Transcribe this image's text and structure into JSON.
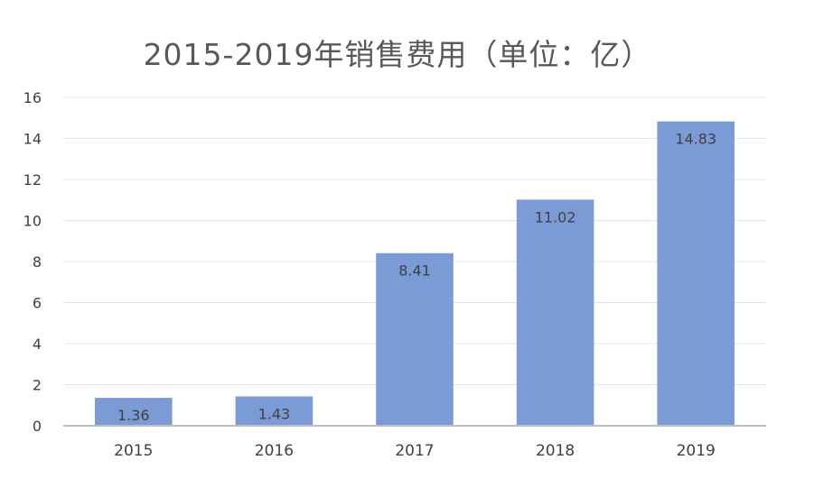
{
  "chart_data": {
    "type": "bar",
    "title": "2015-2019年销售费用（单位：亿）",
    "categories": [
      "2015",
      "2016",
      "2017",
      "2018",
      "2019"
    ],
    "series": [
      {
        "values": [
          1.36,
          1.43,
          8.41,
          11.02,
          14.83
        ],
        "data_labels": [
          "1.36",
          "1.43",
          "8.41",
          "11.02",
          "14.83"
        ]
      }
    ],
    "ylim": [
      0,
      16
    ],
    "yticks": [
      0,
      2,
      4,
      6,
      8,
      10,
      12,
      14,
      16
    ],
    "ytick_labels": [
      "0",
      "2",
      "4",
      "6",
      "8",
      "10",
      "12",
      "14",
      "16"
    ],
    "xlabel": "",
    "ylabel": "",
    "grid": true,
    "legend": "none",
    "colors": {
      "bar": "#7b9bd6",
      "grid": "#e4e4e4",
      "axis": "#bfbfbf",
      "text": "#404040",
      "title": "#595959"
    }
  }
}
